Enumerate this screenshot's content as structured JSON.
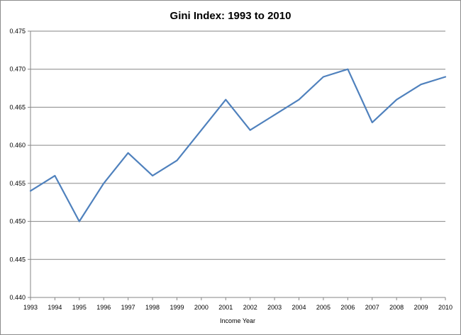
{
  "chart_data": {
    "type": "line",
    "title": "Gini Index: 1993 to 2010",
    "xlabel": "Income Year",
    "ylabel": "",
    "categories": [
      "1993",
      "1994",
      "1995",
      "1996",
      "1997",
      "1998",
      "1999",
      "2000",
      "2001",
      "2002",
      "2003",
      "2004",
      "2005",
      "2006",
      "2007",
      "2008",
      "2009",
      "2010"
    ],
    "series": [
      {
        "values": [
          0.454,
          0.456,
          0.45,
          0.455,
          0.459,
          0.456,
          0.458,
          0.462,
          0.466,
          0.462,
          0.464,
          0.466,
          0.469,
          0.47,
          0.463,
          0.466,
          0.468,
          0.469
        ],
        "color": "#4f81bd"
      }
    ],
    "ylim": [
      0.44,
      0.475
    ],
    "yticks": [
      "0.440",
      "0.445",
      "0.450",
      "0.455",
      "0.460",
      "0.465",
      "0.470",
      "0.475"
    ],
    "grid": true,
    "legend": "none"
  }
}
